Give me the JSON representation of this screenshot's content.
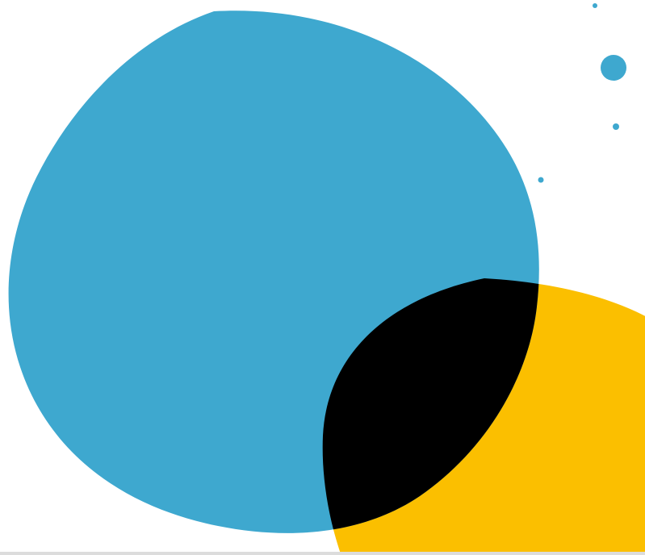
{
  "graphic": {
    "background_color": "#ffffff",
    "colors": {
      "blue_blob": "#3ea8cf",
      "yellow_blob": "#fbbf00",
      "overlap": "#000000",
      "droplets": "#3ea8cf",
      "bottom_edge": "#dcdcdc"
    },
    "shapes": [
      "blue-blob",
      "yellow-blob",
      "black-overlap",
      "droplets"
    ]
  }
}
